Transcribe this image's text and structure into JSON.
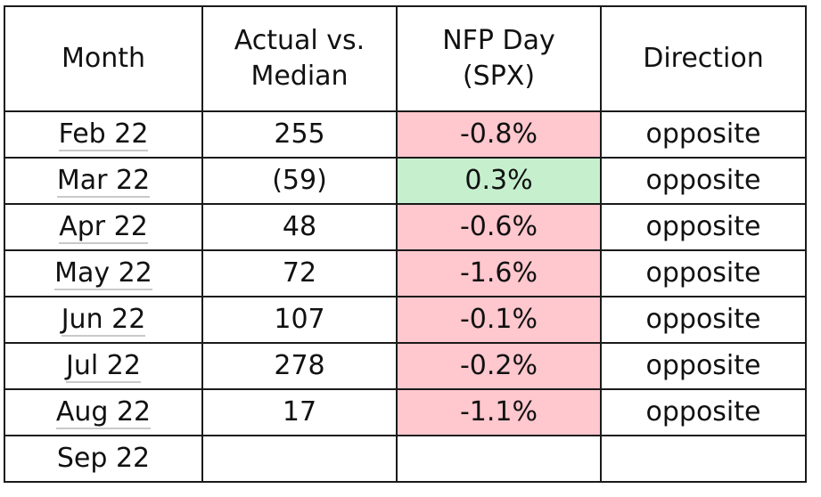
{
  "table": {
    "headers": {
      "month": "Month",
      "actual_line1": "Actual vs.",
      "actual_line2": "Median",
      "nfp_line1": "NFP Day",
      "nfp_line2": "(SPX)",
      "direction": "Direction"
    },
    "rows": [
      {
        "month": "Feb 22",
        "actual": "255",
        "nfp": "-0.8%",
        "direction": "opposite"
      },
      {
        "month": "Mar 22",
        "actual": "(59)",
        "nfp": "0.3%",
        "direction": "opposite"
      },
      {
        "month": "Apr 22",
        "actual": "48",
        "nfp": "-0.6%",
        "direction": "opposite"
      },
      {
        "month": "May 22",
        "actual": "72",
        "nfp": "-1.6%",
        "direction": "opposite"
      },
      {
        "month": "Jun 22",
        "actual": "107",
        "nfp": "-0.1%",
        "direction": "opposite"
      },
      {
        "month": "Jul 22",
        "actual": "278",
        "nfp": "-0.2%",
        "direction": "opposite"
      },
      {
        "month": "Aug 22",
        "actual": "17",
        "nfp": "-1.1%",
        "direction": "opposite"
      },
      {
        "month": "Sep 22",
        "actual": "",
        "nfp": "",
        "direction": ""
      }
    ]
  },
  "colors": {
    "negative_fill": "#ffc7ce",
    "positive_fill": "#c6efce",
    "border": "#1a1a1a"
  }
}
